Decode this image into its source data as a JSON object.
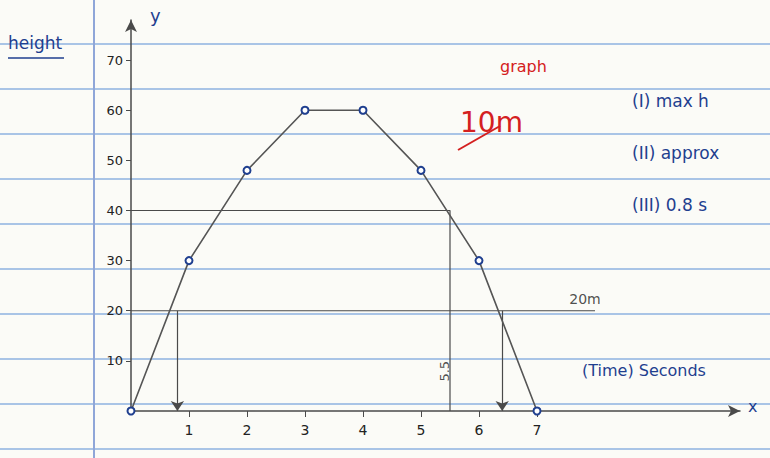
{
  "chart_data": {
    "type": "line",
    "title": "graph",
    "annotations": [
      "10m",
      "(I) max h",
      "(II) approx",
      "(III) 0.8 s"
    ],
    "y_label": "height",
    "y_axis_name": "y",
    "x_label": "(Time) Seconds",
    "x_axis_name": "x",
    "x": [
      0,
      1,
      2,
      3,
      4,
      5,
      6,
      7
    ],
    "values": [
      0,
      30,
      48,
      60,
      60,
      48,
      30,
      0
    ],
    "color": "#555555",
    "marker": "circle",
    "xlim": [
      0,
      10.5
    ],
    "xticks": [
      1,
      2,
      3,
      4,
      5,
      6,
      7
    ],
    "ylim": [
      0,
      78
    ],
    "yticks": [
      10,
      20,
      30,
      40,
      50,
      60,
      70
    ],
    "guides": [
      {
        "y": 40,
        "x": 5.5,
        "label": "5.5"
      },
      {
        "y": 20,
        "x_end": 8,
        "label": "20m",
        "arrows": [
          0.8,
          6.4
        ]
      }
    ],
    "grid": false
  }
}
